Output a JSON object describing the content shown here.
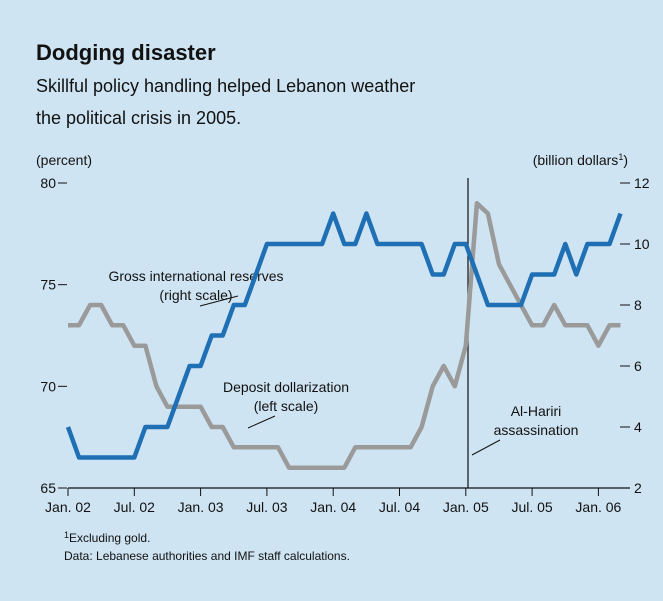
{
  "chart_data": {
    "type": "line",
    "title": "Dodging disaster",
    "subtitle": [
      "Skillful policy handling helped Lebanon weather",
      "the political crisis in 2005."
    ],
    "ylabel": "(percent)",
    "y2label": "(billion dollars",
    "categories": [
      "Jan. 02",
      null,
      null,
      null,
      null,
      null,
      "Jul. 02",
      null,
      null,
      null,
      null,
      null,
      "Jan. 03",
      null,
      null,
      null,
      null,
      null,
      "Jul. 03",
      null,
      null,
      null,
      null,
      null,
      "Jan. 04",
      null,
      null,
      null,
      null,
      null,
      "Jul. 04",
      null,
      null,
      null,
      null,
      null,
      "Jan. 05",
      null,
      null,
      null,
      null,
      null,
      "Jul. 05",
      null,
      null,
      null,
      null,
      null,
      "Jan. 06",
      null,
      null
    ],
    "series": [
      {
        "name": "Deposit dollarization",
        "color": "#9a9a9a",
        "axis": "y",
        "values": [
          73,
          73,
          74,
          74,
          73,
          73,
          72,
          72,
          70,
          69,
          69,
          69,
          69,
          68,
          68,
          67,
          67,
          67,
          67,
          67,
          66,
          66,
          66,
          66,
          66,
          66,
          67,
          67,
          67,
          67,
          67,
          67,
          68,
          70,
          71,
          70,
          72,
          79,
          78.5,
          76,
          75,
          74,
          73,
          73,
          74,
          73,
          73,
          73,
          72,
          73,
          73
        ]
      },
      {
        "name": "Gross international reserves",
        "color": "#1f6fb4",
        "axis": "y2",
        "values": [
          4,
          3,
          3,
          3,
          3,
          3,
          3,
          4,
          4,
          4,
          5,
          6,
          6,
          7,
          7,
          8,
          8,
          9,
          10,
          10,
          10,
          10,
          10,
          10,
          11,
          10,
          10,
          11,
          10,
          10,
          10,
          10,
          10,
          9,
          9,
          10,
          10,
          9,
          8,
          8,
          8,
          8,
          9,
          9,
          9,
          10,
          9,
          10,
          10,
          10,
          11
        ]
      }
    ],
    "ylim": [
      65,
      80
    ],
    "yticks": [
      65,
      70,
      75,
      80
    ],
    "y2lim": [
      2,
      12
    ],
    "y2ticks": [
      2,
      4,
      6,
      8,
      10,
      12
    ],
    "annotations": {
      "reserves": [
        "Gross international reserves",
        "(right scale)"
      ],
      "dollarization": [
        "Deposit dollarization",
        "(left scale)"
      ],
      "event": [
        "Al-Hariri",
        "assassination"
      ]
    },
    "footnote": {
      "marker": "1",
      "text": "Excluding gold."
    },
    "source": "Data: Lebanese authorities and IMF staff calculations."
  }
}
